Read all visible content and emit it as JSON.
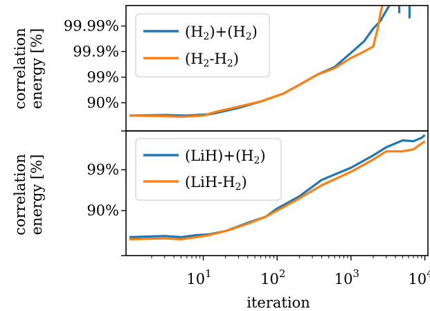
{
  "colors": {
    "blue": "#1f77b4",
    "orange": "#ff7f0e"
  },
  "chart_data": [
    {
      "type": "line",
      "panel": "top",
      "x_scale": "log",
      "y_scale": "error-log",
      "xlim": [
        0.9,
        11000
      ],
      "ylim": [
        -0.1,
        4.8
      ],
      "ylabel_lines": [
        "correlation",
        "energy [%]"
      ],
      "yticks": [
        {
          "label": "90%",
          "value": 1
        },
        {
          "label": "99%",
          "value": 2
        },
        {
          "label": "99.9%",
          "value": 3
        },
        {
          "label": "99.99%",
          "value": 4
        }
      ],
      "legend_position": "upper-left",
      "series": [
        {
          "name": "(H₂)+(H₂)",
          "legend_text": [
            "(H",
            "2",
            ")+(H",
            "2",
            ")"
          ],
          "color": "#1f77b4",
          "points": [
            [
              1,
              0.5
            ],
            [
              3,
              0.52
            ],
            [
              6,
              0.5
            ],
            [
              12,
              0.55
            ],
            [
              15,
              0.6
            ],
            [
              30,
              0.8
            ],
            [
              60,
              1.05
            ],
            [
              120,
              1.35
            ],
            [
              200,
              1.7
            ],
            [
              350,
              2.1
            ],
            [
              600,
              2.4
            ],
            [
              1000,
              2.95
            ],
            [
              1500,
              3.4
            ],
            [
              2000,
              3.9
            ],
            [
              2500,
              4.2
            ],
            [
              3000,
              4.6
            ],
            [
              3300,
              4.8
            ]
          ],
          "segments": [
            [
              [
                4500,
                4.5
              ],
              [
                4500,
                4.8
              ]
            ],
            [
              [
                6200,
                4.3
              ],
              [
                6200,
                4.8
              ]
            ]
          ]
        },
        {
          "name": "(H₂-H₂)",
          "legend_text": [
            "(H",
            "2",
            "-H",
            "2",
            ")"
          ],
          "color": "#ff7f0e",
          "points": [
            [
              1,
              0.5
            ],
            [
              3,
              0.48
            ],
            [
              5,
              0.45
            ],
            [
              10,
              0.5
            ],
            [
              15,
              0.65
            ],
            [
              30,
              0.85
            ],
            [
              60,
              1.05
            ],
            [
              120,
              1.35
            ],
            [
              200,
              1.7
            ],
            [
              350,
              2.1
            ],
            [
              600,
              2.35
            ],
            [
              1000,
              2.75
            ],
            [
              1500,
              3.0
            ],
            [
              2000,
              3.2
            ],
            [
              2300,
              3.9
            ],
            [
              2500,
              4.5
            ],
            [
              2650,
              4.8
            ]
          ],
          "segments": []
        }
      ]
    },
    {
      "type": "line",
      "panel": "bottom",
      "x_scale": "log",
      "y_scale": "error-log",
      "xlim": [
        0.9,
        11000
      ],
      "ylim": [
        -0.1,
        2.95
      ],
      "ylabel_lines": [
        "correlation",
        "energy [%]"
      ],
      "yticks": [
        {
          "label": "90%",
          "value": 1
        },
        {
          "label": "99%",
          "value": 2
        }
      ],
      "xticks": [
        {
          "base": "10",
          "exp": "1",
          "value": 10
        },
        {
          "base": "10",
          "exp": "2",
          "value": 100
        },
        {
          "base": "10",
          "exp": "3",
          "value": 1000
        },
        {
          "base": "10",
          "exp": "4",
          "value": 10000
        }
      ],
      "xlabel": "iteration",
      "legend_position": "upper-left",
      "series": [
        {
          "name": "(LiH)+(H₂)",
          "legend_text": [
            "(LiH)+(H",
            "2",
            ")"
          ],
          "color": "#1f77b4",
          "points": [
            [
              1,
              0.35
            ],
            [
              3,
              0.38
            ],
            [
              5,
              0.35
            ],
            [
              8,
              0.4
            ],
            [
              12,
              0.42
            ],
            [
              20,
              0.5
            ],
            [
              40,
              0.7
            ],
            [
              70,
              0.85
            ],
            [
              100,
              1.05
            ],
            [
              200,
              1.35
            ],
            [
              400,
              1.75
            ],
            [
              1000,
              2.05
            ],
            [
              2000,
              2.35
            ],
            [
              3000,
              2.55
            ],
            [
              5000,
              2.72
            ],
            [
              7000,
              2.7
            ],
            [
              9000,
              2.78
            ],
            [
              10000,
              2.85
            ]
          ],
          "segments": []
        },
        {
          "name": "(LiH-H₂)",
          "legend_text": [
            "(LiH-H",
            "2",
            ")"
          ],
          "color": "#ff7f0e",
          "points": [
            [
              1,
              0.3
            ],
            [
              3,
              0.32
            ],
            [
              5,
              0.3
            ],
            [
              8,
              0.35
            ],
            [
              12,
              0.4
            ],
            [
              20,
              0.5
            ],
            [
              40,
              0.68
            ],
            [
              70,
              0.85
            ],
            [
              100,
              1.0
            ],
            [
              200,
              1.3
            ],
            [
              400,
              1.62
            ],
            [
              1000,
              1.95
            ],
            [
              2000,
              2.25
            ],
            [
              3000,
              2.45
            ],
            [
              5000,
              2.45
            ],
            [
              7000,
              2.5
            ],
            [
              10000,
              2.7
            ]
          ],
          "segments": []
        }
      ]
    }
  ]
}
